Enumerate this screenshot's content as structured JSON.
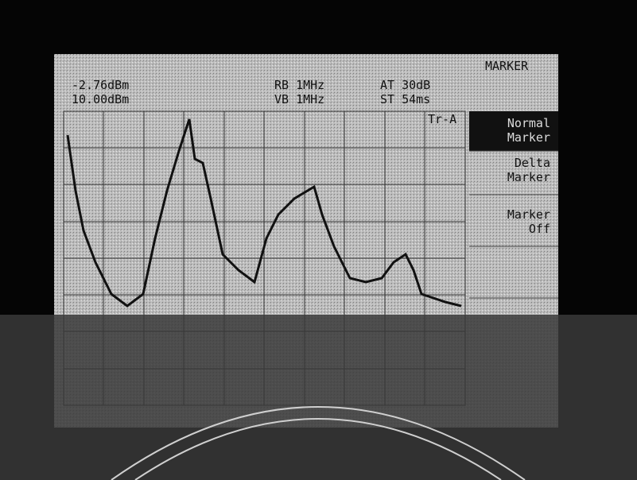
{
  "status": {
    "marker_level": "-2.76dBm",
    "ref_level": "10.00dBm",
    "rbw": "RB 1MHz",
    "vbw": "VB 1MHz",
    "atten": "AT 30dB",
    "sweep": "ST 54ms",
    "trace": "Tr-A"
  },
  "menu": {
    "title": "MARKER",
    "items": [
      [
        "Normal",
        "Marker"
      ],
      [
        "Delta",
        "Marker"
      ],
      [
        "Marker",
        "Off"
      ]
    ]
  }
}
